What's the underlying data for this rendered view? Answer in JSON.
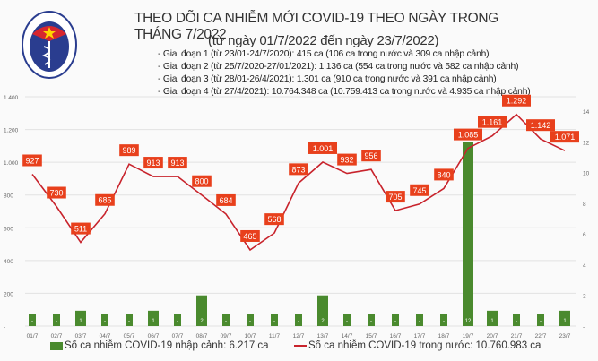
{
  "header": {
    "title": "THEO DÕI CA NHIỄM MỚI COVID-19 THEO NGÀY TRONG THÁNG 7/2022",
    "subtitle": "(từ ngày 01/7/2022 đến ngày 23/7/2022)",
    "logo_text": "BỘ Y TẾ - MINISTRY OF HEALTH",
    "notes": [
      "- Giai đoạn 1 (từ 23/01-24/7/2020): 415 ca (106 ca trong nước và 309 ca nhập cảnh)",
      "- Giai đoạn 2 (từ 25/7/2020-27/01/2021): 1.136 ca (554 ca trong nước và 582 ca nhập cảnh)",
      "- Giai đoạn 3 (từ 28/01-26/4/2021): 1.301 ca (910 ca trong nước và 391 ca nhập cảnh)",
      "- Giai đoạn 4 (từ 27/4/2021): 10.764.348 ca (10.759.413 ca trong nước và 4.935 ca nhập cảnh)"
    ]
  },
  "chart_data": {
    "type": "bar+line",
    "categories": [
      "01/7",
      "02/7",
      "03/7",
      "04/7",
      "05/7",
      "06/7",
      "07/7",
      "08/7",
      "09/7",
      "10/7",
      "11/7",
      "12/7",
      "13/7",
      "14/7",
      "15/7",
      "16/7",
      "17/7",
      "18/7",
      "19/7",
      "20/7",
      "21/7",
      "22/7",
      "23/7"
    ],
    "series": [
      {
        "name": "Số ca nhiễm COVID-19 nhập cảnh: 6.217 ca",
        "type": "bar",
        "axis": "right",
        "color": "#4a8a2e",
        "values": [
          0,
          0,
          1,
          0,
          0,
          1,
          0,
          2,
          0,
          0,
          0,
          0,
          2,
          0,
          0,
          0,
          0,
          0,
          12,
          1,
          0,
          0,
          1
        ],
        "labels": [
          "-",
          "-",
          "1",
          "-",
          "-",
          "1",
          "-",
          "2",
          "-",
          "-",
          "-",
          "-",
          "2",
          "-",
          "-",
          "-",
          "-",
          "-",
          "12",
          "1",
          "-",
          "-",
          "1"
        ]
      },
      {
        "name": "Số ca nhiễm COVID-19 trong nước: 10.760.983 ca",
        "type": "line",
        "axis": "left",
        "color": "#c8232c",
        "values": [
          927,
          730,
          511,
          685,
          989,
          913,
          913,
          800,
          684,
          465,
          568,
          873,
          1001,
          932,
          956,
          705,
          745,
          840,
          1085,
          1161,
          1292,
          1142,
          1071
        ],
        "labels": [
          "927",
          "730",
          "511",
          "685",
          "989",
          "913",
          "913",
          "800",
          "684",
          "465",
          "568",
          "873",
          "1.001",
          "932",
          "956",
          "705",
          "745",
          "840",
          "1.085",
          "1.161",
          "1.292",
          "1.142",
          "1.071"
        ]
      }
    ],
    "left_axis": {
      "ylim": [
        0,
        1400
      ],
      "ticks": [
        "-",
        "200",
        "400",
        "600",
        "800",
        "1.000",
        "1.200",
        "1.400"
      ]
    },
    "right_axis": {
      "ylim": [
        0,
        14
      ],
      "ticks": [
        "-",
        "2",
        "4",
        "6",
        "8",
        "10",
        "12",
        "14"
      ]
    },
    "grid": true,
    "legend": "bottom",
    "label_color": "#e8401c"
  }
}
